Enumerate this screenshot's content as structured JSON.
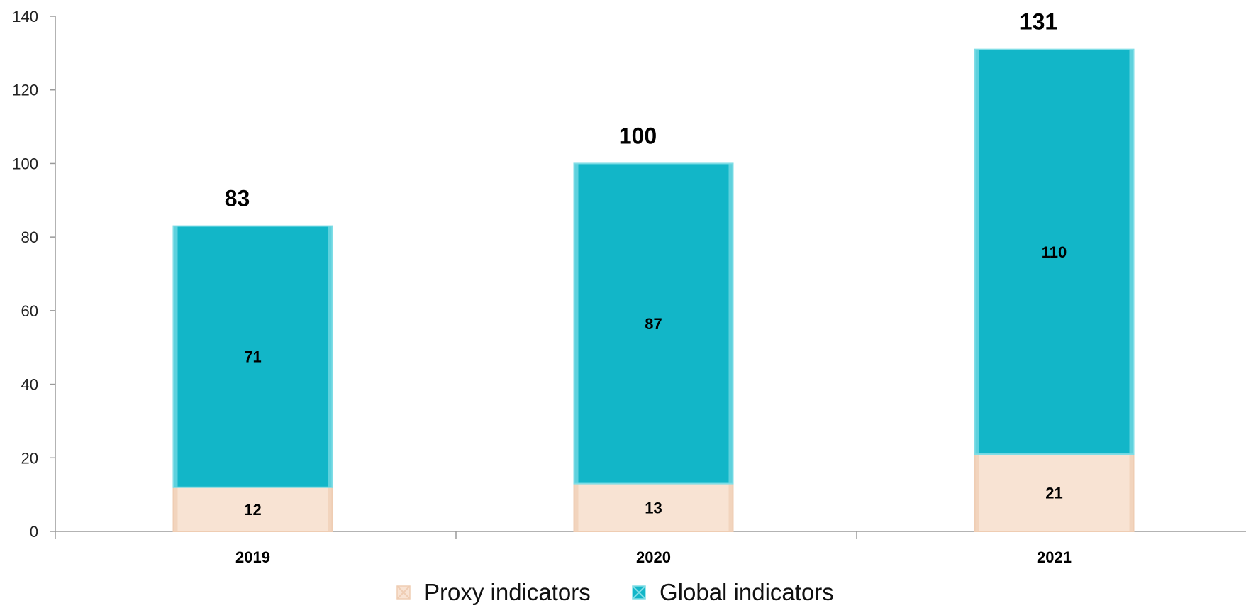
{
  "chart_data": {
    "type": "bar",
    "stacked": true,
    "categories": [
      "2019",
      "2020",
      "2021"
    ],
    "series": [
      {
        "name": "Proxy indicators",
        "values": [
          12,
          13,
          21
        ],
        "color": "#f8e3d3",
        "edge_color": "#efcdb3"
      },
      {
        "name": "Global indicators",
        "values": [
          71,
          87,
          110
        ],
        "color": "#12b6c8",
        "edge_color": "#7fdde6"
      }
    ],
    "totals": [
      83,
      100,
      131
    ],
    "ylim": [
      0,
      140
    ],
    "yticks": [
      0,
      20,
      40,
      60,
      80,
      100,
      120,
      140
    ],
    "grid": false,
    "legend_position": "bottom",
    "xlabel": "",
    "ylabel": "",
    "title": ""
  }
}
